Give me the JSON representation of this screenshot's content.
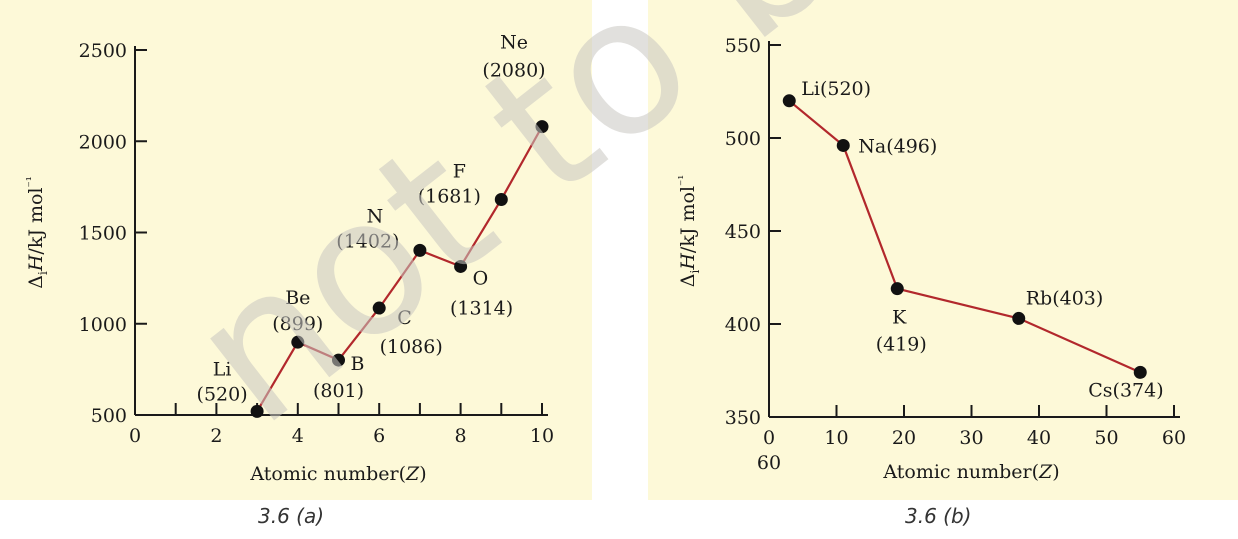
{
  "chart_data": [
    {
      "type": "line",
      "caption": "3.6 (a)",
      "xlabel": "Atomic number(Z)",
      "ylabel": "ΔiH/kJ mol⁻¹",
      "xlim": [
        0,
        10
      ],
      "ylim": [
        500,
        2500
      ],
      "xticks": [
        "0",
        "2",
        "4",
        "6",
        "8",
        "10"
      ],
      "yticks": [
        "500",
        "1000",
        "1500",
        "2000",
        "2500"
      ],
      "series": [
        {
          "x": [
            3,
            4,
            5,
            6,
            7,
            8,
            9,
            10
          ],
          "values": [
            520,
            899,
            801,
            1086,
            1402,
            1314,
            1681,
            2080
          ],
          "labels": [
            "Li",
            "Be",
            "B",
            "C",
            "N",
            "O",
            "F",
            "Ne"
          ],
          "value_labels": [
            "(520)",
            "(899)",
            "(801)",
            "(1086)",
            "(1402)",
            "(1314)",
            "(1681)",
            "(2080)"
          ]
        }
      ],
      "colors": {
        "line": "#b2282c",
        "point": "#111111",
        "background": "#fdf9d8"
      }
    },
    {
      "type": "line",
      "caption": "3.6 (b)",
      "xlabel": "Atomic number(Z)",
      "ylabel": "ΔiH/kJ mol⁻¹",
      "xlim": [
        0,
        60
      ],
      "ylim": [
        350,
        550
      ],
      "xticks": [
        "0",
        "10",
        "20",
        "30",
        "40",
        "50",
        "60"
      ],
      "xtick_extra": "60",
      "yticks": [
        "350",
        "400",
        "450",
        "500",
        "550"
      ],
      "series": [
        {
          "x": [
            3,
            11,
            19,
            37,
            55
          ],
          "values": [
            520,
            496,
            419,
            403,
            374
          ],
          "labels": [
            "Li(520)",
            "Na(496)",
            "K",
            "Rb(403)",
            "Cs(374)"
          ],
          "value_labels": [
            "",
            "",
            "(419)",
            "",
            ""
          ]
        }
      ],
      "colors": {
        "line": "#b2282c",
        "point": "#111111",
        "background": "#fdf9d8"
      }
    }
  ],
  "watermark": "not to be"
}
